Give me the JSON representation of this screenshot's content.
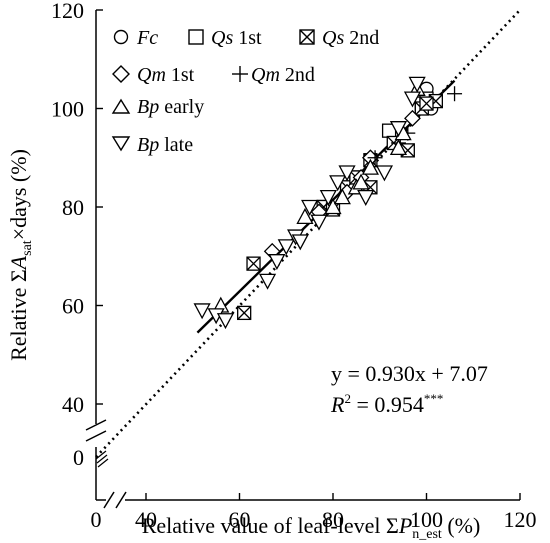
{
  "chart_data": {
    "type": "scatter",
    "xlabel": {
      "prefix": "Relative value of leaf-level Σ",
      "var": "P",
      "sub": "n_est",
      "suffix": " (%)"
    },
    "ylabel": {
      "prefix": "Relative Σ",
      "var": "A",
      "sub": "sat",
      "suffix": "×days (%)"
    },
    "xlim": [
      0,
      120
    ],
    "ylim": [
      0,
      120
    ],
    "axis_break": {
      "x_from": 0,
      "x_to": 35,
      "y_from": 0,
      "y_to": 35
    },
    "xticks": [
      {
        "value": 0,
        "label": "0"
      },
      {
        "value": 40,
        "label": "40"
      },
      {
        "value": 60,
        "label": "60"
      },
      {
        "value": 80,
        "label": "80"
      },
      {
        "value": 100,
        "label": "100"
      },
      {
        "value": 120,
        "label": "120"
      }
    ],
    "yticks": [
      {
        "value": 0,
        "label": "0"
      },
      {
        "value": 40,
        "label": "40"
      },
      {
        "value": 60,
        "label": "60"
      },
      {
        "value": 80,
        "label": "80"
      },
      {
        "value": 100,
        "label": "100"
      },
      {
        "value": 120,
        "label": "120"
      }
    ],
    "grid": false,
    "legend_position": "top-left",
    "series": [
      {
        "name": "Fc",
        "name_italic": "Fc",
        "name_suffix": "",
        "marker": "circle",
        "x": [
          100,
          99,
          101
        ],
        "y": [
          104,
          101,
          100
        ]
      },
      {
        "name": "Qs 1st",
        "name_italic": "Qs",
        "name_suffix": " 1st",
        "marker": "square",
        "x": [
          92,
          99,
          100,
          85,
          78
        ],
        "y": [
          95.5,
          101,
          102,
          86,
          80
        ]
      },
      {
        "name": "Qs 2nd",
        "name_italic": "Qs",
        "name_suffix": " 2nd",
        "marker": "square-x",
        "x": [
          61,
          63,
          78,
          80,
          83,
          85,
          88,
          88,
          93,
          96,
          99,
          102,
          100
        ],
        "y": [
          58.5,
          68.5,
          80,
          79.5,
          84,
          86,
          84,
          89.5,
          93,
          91.5,
          100,
          101.5,
          101
        ]
      },
      {
        "name": "Qm 1st",
        "name_italic": "Qm",
        "name_suffix": " 1st",
        "marker": "diamond",
        "x": [
          67,
          77,
          83,
          86,
          88,
          97
        ],
        "y": [
          71,
          79,
          83,
          86,
          90,
          98
        ]
      },
      {
        "name": "Qm 2nd",
        "name_italic": "Qm",
        "name_suffix": " 2nd",
        "marker": "plus",
        "x": [
          106,
          96,
          94,
          89
        ],
        "y": [
          103,
          95,
          93,
          90
        ]
      },
      {
        "name": "Bp early",
        "name_italic": "Bp",
        "name_suffix": " early",
        "marker": "triangle-up",
        "x": [
          56,
          74,
          80,
          82,
          85,
          86,
          88,
          95,
          94,
          98
        ],
        "y": [
          60,
          78,
          80,
          82,
          84,
          85,
          88,
          95,
          92,
          104
        ]
      },
      {
        "name": "Bp late",
        "name_italic": "Bp",
        "name_suffix": " late",
        "marker": "triangle-down",
        "x": [
          52,
          55,
          57,
          66,
          68,
          70,
          72,
          73,
          75,
          77,
          79,
          81,
          83,
          87,
          91,
          94,
          97,
          98
        ],
        "y": [
          59,
          58,
          57,
          65,
          69,
          72,
          74,
          73,
          80,
          77,
          82,
          85,
          87,
          82,
          87,
          96,
          102,
          105
        ]
      }
    ],
    "regression": {
      "slope": 0.93,
      "intercept": 7.07,
      "x_range": [
        51,
        106
      ]
    },
    "one_to_one": {
      "x_range": [
        0,
        120
      ]
    },
    "equation": "y = 0.930x + 7.07",
    "r2": {
      "label": "R",
      "exp": "2",
      "value": " = 0.954",
      "sig": "***"
    }
  }
}
